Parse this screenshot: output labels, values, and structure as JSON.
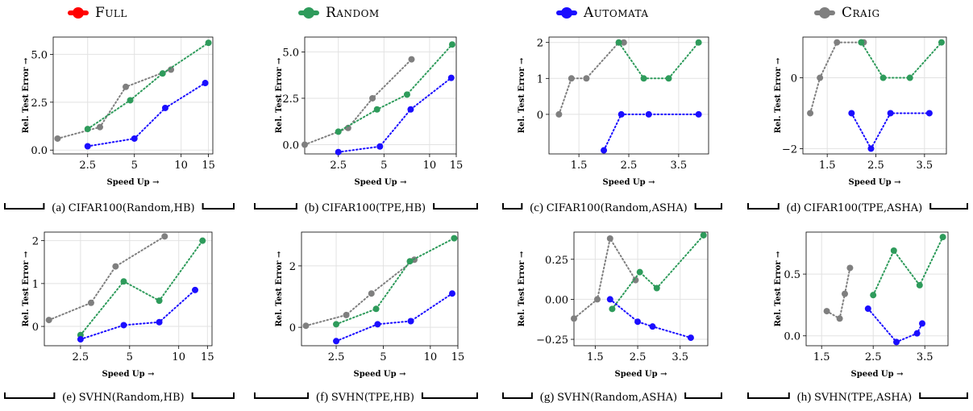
{
  "legend": [
    {
      "name": "Full",
      "color": "#ff0000"
    },
    {
      "name": "Random",
      "color": "#2e9b5b"
    },
    {
      "name": "Automata",
      "color": "#1a0dff"
    },
    {
      "name": "Craig",
      "color": "#7f7f7f"
    }
  ],
  "chart_data": [
    {
      "type": "line",
      "id": "a",
      "caption_label": "(a)",
      "caption_dataset": "CIFAR100(Random,HB)",
      "xlabel": "Speed Up →",
      "ylabel": "Rel. Test Error →",
      "xscale": "log",
      "xlim": [
        1.5,
        16
      ],
      "ylim": [
        -0.2,
        5.9
      ],
      "xticks": [
        2.5,
        5,
        10,
        15
      ],
      "xtick_labels": [
        "2.5",
        "5",
        "10",
        "15"
      ],
      "yticks": [
        0,
        2.5,
        5
      ],
      "ytick_labels": [
        "0.0",
        "2.5",
        "5.0"
      ],
      "grid": true,
      "series": [
        {
          "name": "Craig",
          "x": [
            1.6,
            3.0,
            4.4,
            8.6
          ],
          "y": [
            0.6,
            1.2,
            3.3,
            4.2
          ]
        },
        {
          "name": "Random",
          "x": [
            2.5,
            4.7,
            7.6,
            15.0
          ],
          "y": [
            1.1,
            2.6,
            4.0,
            5.6
          ]
        },
        {
          "name": "Automata",
          "x": [
            2.5,
            5.0,
            7.9,
            14.3
          ],
          "y": [
            0.2,
            0.6,
            2.2,
            3.5
          ]
        }
      ]
    },
    {
      "type": "line",
      "id": "b",
      "caption_label": "(b)",
      "caption_dataset": "CIFAR100(TPE,HB)",
      "xlabel": "Speed Up →",
      "ylabel": "Rel. Test Error →",
      "xscale": "log",
      "xlim": [
        1.5,
        15
      ],
      "ylim": [
        -0.5,
        5.8
      ],
      "xticks": [
        2.5,
        5,
        10,
        15
      ],
      "xtick_labels": [
        "2.5",
        "5",
        "10",
        "15"
      ],
      "yticks": [
        0,
        2.5,
        5
      ],
      "ytick_labels": [
        "0.0",
        "2.5",
        "5.0"
      ],
      "grid": true,
      "series": [
        {
          "name": "Craig",
          "x": [
            1.5,
            2.9,
            4.2,
            7.6
          ],
          "y": [
            0.0,
            0.9,
            2.5,
            4.6
          ]
        },
        {
          "name": "Random",
          "x": [
            2.5,
            4.5,
            7.1,
            14.1
          ],
          "y": [
            0.7,
            1.9,
            2.7,
            5.4
          ]
        },
        {
          "name": "Automata",
          "x": [
            2.5,
            4.7,
            7.5,
            13.9
          ],
          "y": [
            -0.4,
            -0.1,
            1.9,
            3.6
          ]
        }
      ]
    },
    {
      "type": "line",
      "id": "c",
      "caption_label": "(c)",
      "caption_dataset": "CIFAR100(Random,ASHA)",
      "xlabel": "Speed Up →",
      "ylabel": "Rel. Test Error →",
      "xscale": "linear",
      "xlim": [
        0.9,
        4.1
      ],
      "ylim": [
        -1.1,
        2.15
      ],
      "xticks": [
        1.5,
        2.5,
        3.5
      ],
      "xtick_labels": [
        "1.5",
        "2.5",
        "3.5"
      ],
      "yticks": [
        0,
        1,
        2
      ],
      "ytick_labels": [
        "0",
        "1",
        "2"
      ],
      "grid": true,
      "series": [
        {
          "name": "Craig",
          "x": [
            1.1,
            1.35,
            1.65,
            2.3,
            2.4
          ],
          "y": [
            0,
            1,
            1,
            2,
            2
          ]
        },
        {
          "name": "Random",
          "x": [
            2.3,
            2.8,
            3.3,
            3.9
          ],
          "y": [
            2,
            1,
            1,
            2
          ]
        },
        {
          "name": "Automata",
          "x": [
            2.0,
            2.35,
            2.9,
            3.9
          ],
          "y": [
            -1,
            0,
            0,
            0
          ]
        }
      ]
    },
    {
      "type": "line",
      "id": "d",
      "caption_label": "(d)",
      "caption_dataset": "CIFAR100(TPE,ASHA)",
      "xlabel": "Speed Up →",
      "ylabel": "Rel. Test Error →",
      "xscale": "linear",
      "xlim": [
        1.0,
        3.95
      ],
      "ylim": [
        -2.15,
        1.15
      ],
      "xticks": [
        1.5,
        2.5,
        3.5
      ],
      "xtick_labels": [
        "1.5",
        "2.5",
        "3.5"
      ],
      "yticks": [
        -2,
        0
      ],
      "ytick_labels": [
        "−2",
        "0"
      ],
      "grid": true,
      "series": [
        {
          "name": "Craig",
          "x": [
            1.15,
            1.35,
            1.7,
            2.2,
            2.25
          ],
          "y": [
            -1,
            0,
            1,
            1,
            1
          ]
        },
        {
          "name": "Random",
          "x": [
            2.2,
            2.65,
            3.2,
            3.85
          ],
          "y": [
            1,
            0,
            0,
            1
          ]
        },
        {
          "name": "Automata",
          "x": [
            2.0,
            2.4,
            2.8,
            3.6
          ],
          "y": [
            -1,
            -2,
            -1,
            -1
          ]
        }
      ]
    },
    {
      "type": "line",
      "id": "e",
      "caption_label": "(e)",
      "caption_dataset": "SVHN(Random,HB)",
      "xlabel": "Speed Up →",
      "ylabel": "Rel. Test Error →",
      "xscale": "log",
      "xlim": [
        1.5,
        16
      ],
      "ylim": [
        -0.45,
        2.2
      ],
      "xticks": [
        2.5,
        5,
        10,
        15
      ],
      "xtick_labels": [
        "2.5",
        "5",
        "10",
        "15"
      ],
      "yticks": [
        0,
        1,
        2
      ],
      "ytick_labels": [
        "0",
        "1",
        "2"
      ],
      "grid": true,
      "series": [
        {
          "name": "Craig",
          "x": [
            1.6,
            2.9,
            4.1,
            8.2
          ],
          "y": [
            0.15,
            0.55,
            1.4,
            2.1
          ]
        },
        {
          "name": "Random",
          "x": [
            2.5,
            4.6,
            7.6,
            14.0
          ],
          "y": [
            -0.2,
            1.05,
            0.6,
            2.0
          ]
        },
        {
          "name": "Automata",
          "x": [
            2.5,
            4.6,
            7.6,
            12.6
          ],
          "y": [
            -0.3,
            0.03,
            0.1,
            0.85
          ]
        }
      ]
    },
    {
      "type": "line",
      "id": "f",
      "caption_label": "(f)",
      "caption_dataset": "SVHN(TPE,HB)",
      "xlabel": "Speed Up →",
      "ylabel": "Rel. Test Error →",
      "xscale": "log",
      "xlim": [
        1.5,
        15
      ],
      "ylim": [
        -0.6,
        3.1
      ],
      "xticks": [
        2.5,
        5,
        10,
        15
      ],
      "xtick_labels": [
        "2.5",
        "5",
        "10",
        "15"
      ],
      "yticks": [
        0,
        2
      ],
      "ytick_labels": [
        "0",
        "2"
      ],
      "grid": true,
      "series": [
        {
          "name": "Craig",
          "x": [
            1.6,
            2.9,
            4.2,
            7.9
          ],
          "y": [
            0.05,
            0.4,
            1.1,
            2.2
          ]
        },
        {
          "name": "Random",
          "x": [
            2.5,
            4.5,
            7.4,
            14.2
          ],
          "y": [
            0.1,
            0.6,
            2.15,
            2.9
          ]
        },
        {
          "name": "Automata",
          "x": [
            2.5,
            4.6,
            7.5,
            13.8
          ],
          "y": [
            -0.45,
            0.1,
            0.2,
            1.1
          ]
        }
      ]
    },
    {
      "type": "line",
      "id": "g",
      "caption_label": "(g)",
      "caption_dataset": "SVHN(Random,ASHA)",
      "xlabel": "Speed Up →",
      "ylabel": "Rel. Test Error →",
      "xscale": "linear",
      "xlim": [
        1.0,
        4.15
      ],
      "ylim": [
        -0.29,
        0.42
      ],
      "xticks": [
        1.5,
        2.5,
        3.5
      ],
      "xtick_labels": [
        "1.5",
        "2.5",
        "3.5"
      ],
      "yticks": [
        -0.25,
        0,
        0.25
      ],
      "ytick_labels": [
        "−0.25",
        "0.00",
        "0.25"
      ],
      "grid": true,
      "series": [
        {
          "name": "Craig",
          "x": [
            1.0,
            1.55,
            1.85,
            2.45
          ],
          "y": [
            -0.12,
            0.0,
            0.38,
            0.12
          ]
        },
        {
          "name": "Random",
          "x": [
            1.9,
            2.55,
            2.95,
            4.05
          ],
          "y": [
            -0.06,
            0.17,
            0.07,
            0.4
          ]
        },
        {
          "name": "Automata",
          "x": [
            1.85,
            2.5,
            2.85,
            3.75
          ],
          "y": [
            0.0,
            -0.14,
            -0.17,
            -0.24
          ]
        }
      ]
    },
    {
      "type": "line",
      "id": "h",
      "caption_label": "(h)",
      "caption_dataset": "SVHN(TPE,ASHA)",
      "xlabel": "Speed Up →",
      "ylabel": "Rel. Test Error →",
      "xscale": "linear",
      "xlim": [
        1.2,
        3.95
      ],
      "ylim": [
        -0.08,
        0.84
      ],
      "xticks": [
        1.5,
        2.5,
        3.5
      ],
      "xtick_labels": [
        "1.5",
        "2.5",
        "3.5"
      ],
      "yticks": [
        0,
        0.5
      ],
      "ytick_labels": [
        "0.0",
        "0.5"
      ],
      "grid": true,
      "series": [
        {
          "name": "Craig",
          "x": [
            1.6,
            1.85,
            1.95,
            2.05
          ],
          "y": [
            0.2,
            0.14,
            0.34,
            0.55
          ]
        },
        {
          "name": "Random",
          "x": [
            2.5,
            2.9,
            3.4,
            3.85
          ],
          "y": [
            0.33,
            0.69,
            0.41,
            0.8
          ]
        },
        {
          "name": "Automata",
          "x": [
            2.4,
            2.95,
            3.35,
            3.45
          ],
          "y": [
            0.22,
            -0.05,
            0.02,
            0.1
          ]
        }
      ]
    }
  ]
}
